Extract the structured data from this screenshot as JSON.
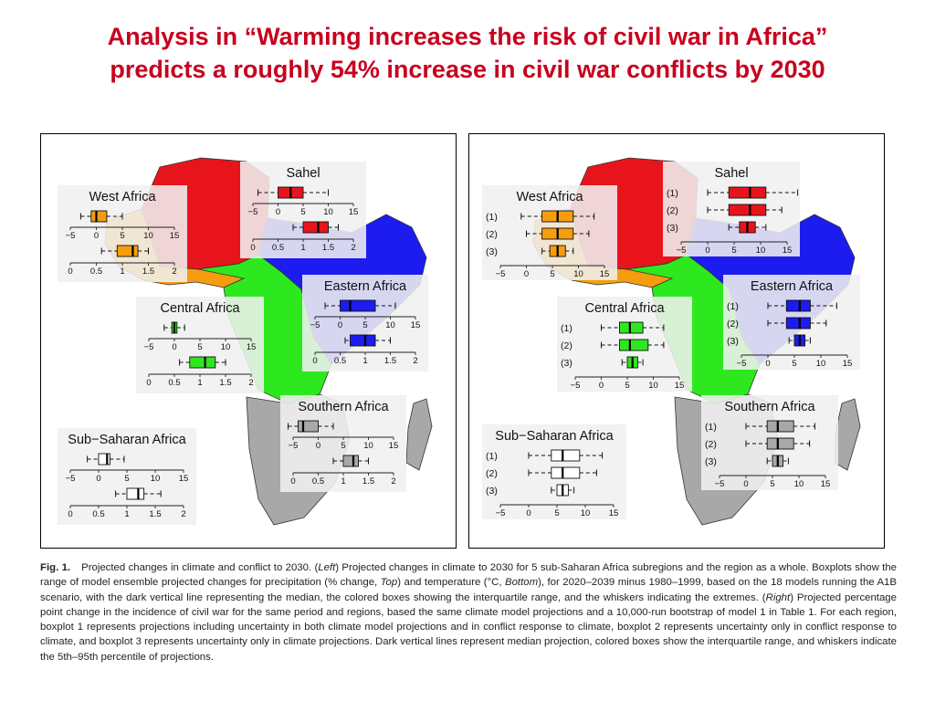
{
  "title_lines": [
    "Analysis in “Warming increases the risk of civil war in Africa”",
    "predicts a roughly 54% increase in civil war conflicts by 2030"
  ],
  "region_colors": {
    "Sahel": "#e8141c",
    "West Africa": "#f59d0e",
    "Central Africa": "#2ee81f",
    "Eastern Africa": "#1c1cf0",
    "Southern Africa": "#a8a8a8",
    "Sub-Saharan Africa": "#ffffff"
  },
  "chart_data": [
    {
      "type": "boxplot",
      "panel": "left",
      "precip_axis": {
        "range": [
          -5,
          15
        ],
        "ticks": [
          "−5",
          "0",
          "5",
          "10",
          "15"
        ]
      },
      "temp_axis": {
        "range": [
          0,
          2
        ],
        "ticks": [
          "0",
          "0.5",
          "1",
          "1.5",
          "2"
        ]
      },
      "regions": [
        {
          "name": "West Africa",
          "precip": {
            "whisker_low": -3,
            "q1": -1,
            "median": 0,
            "q3": 2,
            "whisker_high": 5
          },
          "temp": {
            "whisker_low": 0.6,
            "q1": 0.9,
            "median": 1.2,
            "q3": 1.3,
            "whisker_high": 1.5
          }
        },
        {
          "name": "Sahel",
          "precip": {
            "whisker_low": -4,
            "q1": 0,
            "median": 2.5,
            "q3": 5,
            "whisker_high": 10
          },
          "temp": {
            "whisker_low": 0.8,
            "q1": 1.0,
            "median": 1.3,
            "q3": 1.5,
            "whisker_high": 1.7
          }
        },
        {
          "name": "Central Africa",
          "precip": {
            "whisker_low": -2,
            "q1": -0.5,
            "median": 0,
            "q3": 0.5,
            "whisker_high": 2
          },
          "temp": {
            "whisker_low": 0.6,
            "q1": 0.8,
            "median": 1.1,
            "q3": 1.3,
            "whisker_high": 1.5
          }
        },
        {
          "name": "Eastern Africa",
          "precip": {
            "whisker_low": -3,
            "q1": 0,
            "median": 2,
            "q3": 7,
            "whisker_high": 11
          },
          "temp": {
            "whisker_low": 0.6,
            "q1": 0.7,
            "median": 1.0,
            "q3": 1.2,
            "whisker_high": 1.5
          }
        },
        {
          "name": "Southern Africa",
          "precip": {
            "whisker_low": -6,
            "q1": -4,
            "median": -3,
            "q3": 0,
            "whisker_high": 3
          },
          "temp": {
            "whisker_low": 0.8,
            "q1": 1.0,
            "median": 1.2,
            "q3": 1.3,
            "whisker_high": 1.5
          }
        },
        {
          "name": "Sub−Saharan Africa",
          "precip": {
            "whisker_low": -2,
            "q1": 0,
            "median": 1.5,
            "q3": 2,
            "whisker_high": 4.5
          },
          "temp": {
            "whisker_low": 0.8,
            "q1": 1.0,
            "median": 1.2,
            "q3": 1.3,
            "whisker_high": 1.6
          }
        }
      ]
    },
    {
      "type": "boxplot",
      "panel": "right",
      "axis": {
        "range": [
          -5,
          15
        ],
        "ticks": [
          "−5",
          "0",
          "5",
          "10",
          "15"
        ]
      },
      "row_labels": [
        "(1)",
        "(2)",
        "(3)"
      ],
      "regions": [
        {
          "name": "West Africa",
          "boxes": [
            {
              "whisker_low": -1,
              "q1": 3,
              "median": 6,
              "q3": 9,
              "whisker_high": 13
            },
            {
              "whisker_low": 0,
              "q1": 3,
              "median": 6,
              "q3": 9,
              "whisker_high": 12
            },
            {
              "whisker_low": 3,
              "q1": 4.5,
              "median": 6,
              "q3": 7.5,
              "whisker_high": 9
            }
          ]
        },
        {
          "name": "Sahel",
          "boxes": [
            {
              "whisker_low": 0,
              "q1": 4,
              "median": 8,
              "q3": 11,
              "whisker_high": 17
            },
            {
              "whisker_low": 0,
              "q1": 4,
              "median": 8,
              "q3": 11,
              "whisker_high": 14
            },
            {
              "whisker_low": 4,
              "q1": 6,
              "median": 7.5,
              "q3": 9,
              "whisker_high": 11
            }
          ]
        },
        {
          "name": "Central Africa",
          "boxes": [
            {
              "whisker_low": 0,
              "q1": 3.5,
              "median": 5.5,
              "q3": 8,
              "whisker_high": 12
            },
            {
              "whisker_low": 0,
              "q1": 3.5,
              "median": 5.5,
              "q3": 9,
              "whisker_high": 12
            },
            {
              "whisker_low": 4,
              "q1": 5,
              "median": 6,
              "q3": 7,
              "whisker_high": 8
            }
          ]
        },
        {
          "name": "Eastern Africa",
          "boxes": [
            {
              "whisker_low": 0,
              "q1": 3.5,
              "median": 6,
              "q3": 8,
              "whisker_high": 13
            },
            {
              "whisker_low": 0,
              "q1": 3.5,
              "median": 6,
              "q3": 8,
              "whisker_high": 11
            },
            {
              "whisker_low": 4,
              "q1": 5,
              "median": 6,
              "q3": 7,
              "whisker_high": 8
            }
          ]
        },
        {
          "name": "Southern Africa",
          "boxes": [
            {
              "whisker_low": 0,
              "q1": 4,
              "median": 6,
              "q3": 9,
              "whisker_high": 13
            },
            {
              "whisker_low": 0,
              "q1": 4,
              "median": 6,
              "q3": 9,
              "whisker_high": 12
            },
            {
              "whisker_low": 4,
              "q1": 5,
              "median": 6,
              "q3": 7,
              "whisker_high": 8
            }
          ]
        },
        {
          "name": "Sub−Saharan Africa",
          "boxes": [
            {
              "whisker_low": 0,
              "q1": 4,
              "median": 6,
              "q3": 9,
              "whisker_high": 13
            },
            {
              "whisker_low": 0,
              "q1": 4,
              "median": 6,
              "q3": 9,
              "whisker_high": 12
            },
            {
              "whisker_low": 4,
              "q1": 5,
              "median": 6,
              "q3": 7,
              "whisker_high": 8
            }
          ]
        }
      ]
    }
  ],
  "caption": {
    "fig_label": "Fig. 1.",
    "parts": [
      {
        "t": "Projected changes in climate and conflict to 2030. ("
      },
      {
        "t": "Left",
        "i": true
      },
      {
        "t": ") Projected changes in climate to 2030 for 5 sub-Saharan Africa subregions and the region as a whole. Boxplots show the range of model ensemble projected changes for precipitation (% change, "
      },
      {
        "t": "Top",
        "i": true
      },
      {
        "t": ") and temperature (°C, "
      },
      {
        "t": "Bottom",
        "i": true
      },
      {
        "t": "), for 2020–2039 minus 1980–1999, based on the 18 models running the A1B scenario, with the dark vertical line representing the median, the colored boxes showing the interquartile range, and the whiskers indicating the extremes. ("
      },
      {
        "t": "Right",
        "i": true
      },
      {
        "t": ") Projected percentage point change in the incidence of civil war for the same period and regions, based the same climate model projections and a 10,000-run bootstrap of model 1 in Table 1. For each region, boxplot 1 represents projections including uncertainty in both climate model projections and in conflict response to climate, boxplot 2 represents uncertainty only in conflict response to climate, and boxplot 3 represents uncertainty only in climate projections. Dark vertical lines represent median projection, colored boxes show the interquartile range, and whiskers indicate the 5th–95th percentile of projections."
      }
    ]
  }
}
